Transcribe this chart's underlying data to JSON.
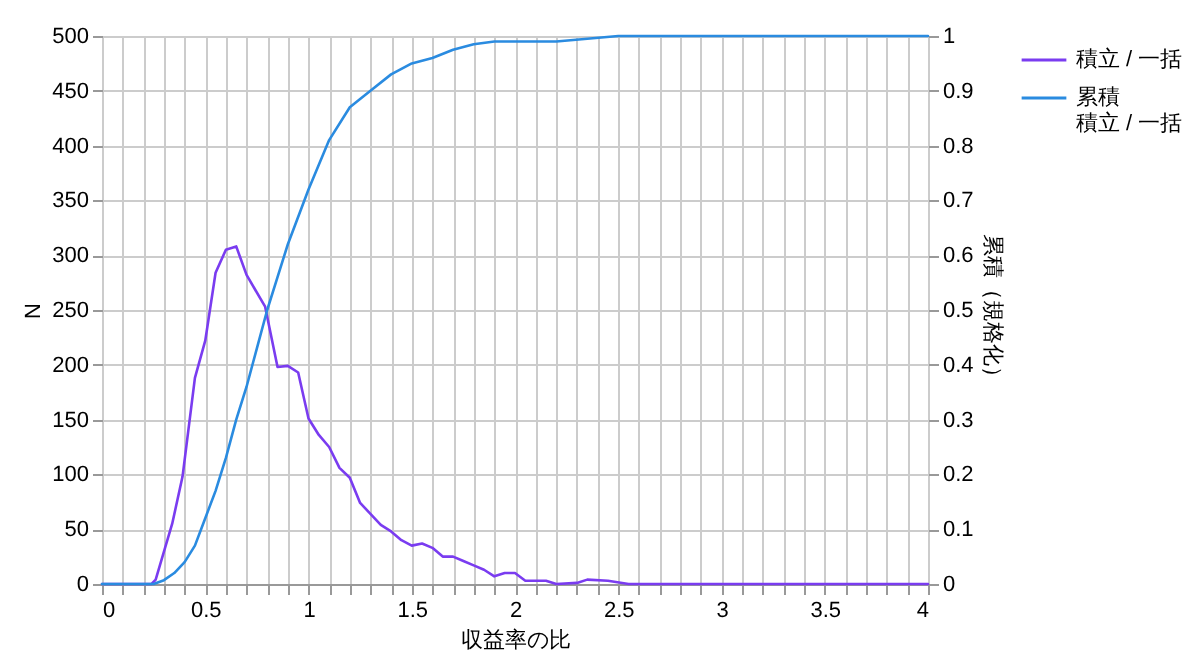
{
  "chart_data": {
    "type": "line",
    "xlabel": "収益率の比",
    "ylabel": "N",
    "y2label": "累積（規格化）",
    "legend": "right",
    "grid": true,
    "xlim": [
      0,
      4
    ],
    "ylim": [
      0,
      500
    ],
    "y2lim": [
      0,
      1
    ],
    "xticks": [
      0,
      {
        "value": 0.1,
        "label": null
      },
      {
        "value": 0.2,
        "label": null
      },
      {
        "value": 0.3,
        "label": null
      },
      {
        "value": 0.4,
        "label": null
      },
      0.5,
      {
        "value": 0.6,
        "label": null
      },
      {
        "value": 0.7,
        "label": null
      },
      {
        "value": 0.8,
        "label": null
      },
      {
        "value": 0.9,
        "label": null
      },
      1,
      {
        "value": 1.1,
        "label": null
      },
      {
        "value": 1.2,
        "label": null
      },
      {
        "value": 1.3,
        "label": null
      },
      {
        "value": 1.4,
        "label": null
      },
      1.5,
      {
        "value": 1.6,
        "label": null
      },
      {
        "value": 1.7,
        "label": null
      },
      {
        "value": 1.8,
        "label": null
      },
      {
        "value": 1.9,
        "label": null
      },
      2,
      {
        "value": 2.1,
        "label": null
      },
      {
        "value": 2.2,
        "label": null
      },
      {
        "value": 2.3,
        "label": null
      },
      {
        "value": 2.4,
        "label": null
      },
      2.5,
      {
        "value": 2.6,
        "label": null
      },
      {
        "value": 2.7,
        "label": null
      },
      {
        "value": 2.8,
        "label": null
      },
      {
        "value": 2.9,
        "label": null
      },
      3,
      {
        "value": 3.1,
        "label": null
      },
      {
        "value": 3.2,
        "label": null
      },
      {
        "value": 3.3,
        "label": null
      },
      {
        "value": 3.4,
        "label": null
      },
      3.5,
      {
        "value": 3.6,
        "label": null
      },
      {
        "value": 3.7,
        "label": null
      },
      {
        "value": 3.8,
        "label": null
      },
      {
        "value": 3.9,
        "label": null
      },
      4
    ],
    "yticks": [
      0,
      50,
      100,
      150,
      200,
      250,
      300,
      350,
      400,
      450,
      500
    ],
    "y2ticks": [
      0,
      0.1,
      0.2,
      0.3,
      0.4,
      0.5,
      0.6,
      0.7,
      0.8,
      0.9,
      1
    ],
    "series": [
      {
        "name": "積立 / 一括",
        "color": "#7a3cf0",
        "x": [
          0,
          0.24,
          0.26,
          0.34,
          0.39,
          0.45,
          0.5,
          0.55,
          0.6,
          0.65,
          0.7,
          0.79,
          0.85,
          0.9,
          0.95,
          1.0,
          1.05,
          1.1,
          1.15,
          1.2,
          1.25,
          1.3,
          1.35,
          1.4,
          1.45,
          1.5,
          1.55,
          1.6,
          1.65,
          1.7,
          1.75,
          1.8,
          1.85,
          1.9,
          1.95,
          2.0,
          2.05,
          2.15,
          2.2,
          2.3,
          2.35,
          2.45,
          2.55,
          4
        ],
        "values": [
          0,
          0,
          4,
          55,
          98,
          188,
          222,
          284,
          305,
          308,
          282,
          253,
          198,
          199,
          193,
          151,
          136,
          125,
          106,
          97,
          74,
          64,
          54,
          48,
          40,
          35,
          37,
          33,
          25,
          25,
          21,
          17,
          13,
          7,
          10,
          10,
          3,
          3,
          0,
          1,
          4,
          3,
          0,
          0
        ]
      },
      {
        "name": "累積積立 / 一括",
        "color": "#2a8be0",
        "axis": "y2",
        "x": [
          0,
          0.25,
          0.3,
          0.35,
          0.4,
          0.45,
          0.5,
          0.55,
          0.6,
          0.65,
          0.7,
          0.75,
          0.8,
          0.85,
          0.9,
          1.0,
          1.1,
          1.2,
          1.3,
          1.4,
          1.5,
          1.6,
          1.7,
          1.8,
          1.9,
          2.0,
          2.2,
          2.5,
          4
        ],
        "values": [
          0,
          0,
          0.007,
          0.02,
          0.04,
          0.07,
          0.12,
          0.17,
          0.23,
          0.3,
          0.36,
          0.43,
          0.5,
          0.56,
          0.62,
          0.72,
          0.81,
          0.87,
          0.9,
          0.93,
          0.95,
          0.96,
          0.975,
          0.985,
          0.99,
          0.99,
          0.99,
          1,
          1
        ]
      }
    ]
  }
}
